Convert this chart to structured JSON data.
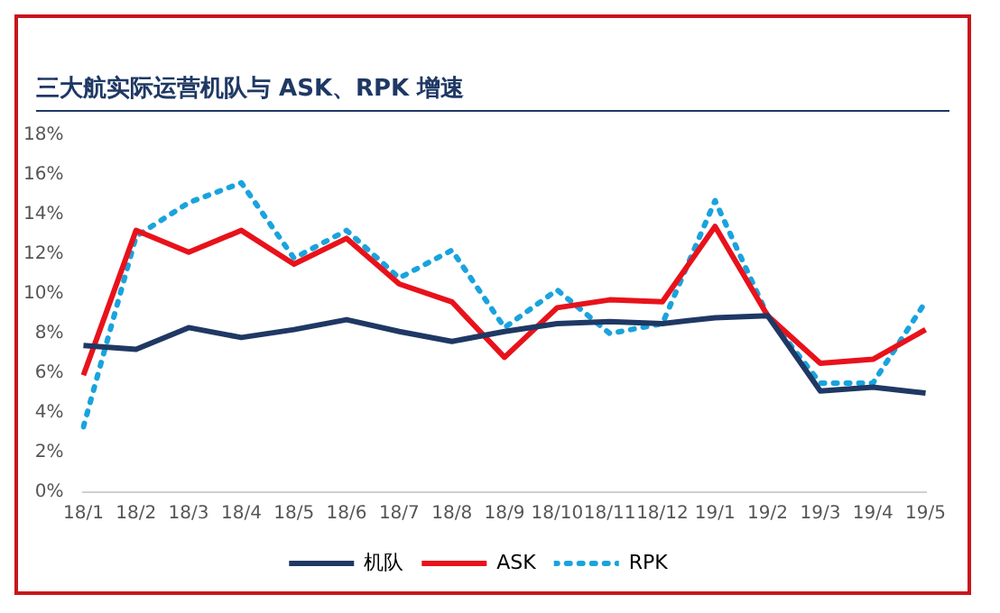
{
  "chart_data": {
    "type": "line",
    "title": "三大航实际运营机队与 ASK、RPK 增速",
    "categories": [
      "18/1",
      "18/2",
      "18/3",
      "18/4",
      "18/5",
      "18/6",
      "18/7",
      "18/8",
      "18/9",
      "18/10",
      "18/11",
      "18/12",
      "19/1",
      "19/2",
      "19/3",
      "19/4",
      "19/5"
    ],
    "series": [
      {
        "name": "机队",
        "color": "#1f3864",
        "line_style": "solid",
        "values": [
          7.4,
          7.2,
          8.3,
          7.8,
          8.2,
          8.7,
          8.1,
          7.6,
          8.1,
          8.5,
          8.6,
          8.5,
          8.8,
          8.9,
          5.1,
          5.3,
          5.0
        ]
      },
      {
        "name": "ASK",
        "color": "#e8121b",
        "line_style": "solid",
        "values": [
          5.9,
          13.2,
          12.1,
          13.2,
          11.5,
          12.8,
          10.5,
          9.6,
          6.8,
          9.3,
          9.7,
          9.6,
          13.4,
          8.9,
          6.5,
          6.7,
          8.2
        ]
      },
      {
        "name": "RPK",
        "color": "#1aa3dd",
        "line_style": "dotted",
        "values": [
          3.3,
          12.9,
          14.6,
          15.6,
          11.8,
          13.2,
          10.8,
          12.2,
          8.3,
          10.2,
          8.0,
          8.5,
          14.7,
          8.9,
          5.5,
          5.5,
          9.6
        ]
      }
    ],
    "ylim": [
      0,
      18
    ],
    "yticks": [
      {
        "value": 0,
        "label": "0%"
      },
      {
        "value": 2,
        "label": "2%"
      },
      {
        "value": 4,
        "label": "4%"
      },
      {
        "value": 6,
        "label": "6%"
      },
      {
        "value": 8,
        "label": "8%"
      },
      {
        "value": 10,
        "label": "10%"
      },
      {
        "value": 12,
        "label": "12%"
      },
      {
        "value": 14,
        "label": "14%"
      },
      {
        "value": 16,
        "label": "16%"
      },
      {
        "value": 18,
        "label": "18%"
      }
    ],
    "grid": false,
    "legend": "bottom",
    "marker": "none"
  }
}
